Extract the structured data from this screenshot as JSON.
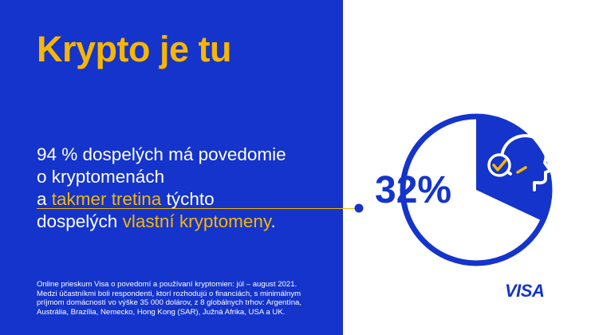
{
  "title": "Krypto je tu",
  "statement": {
    "line1": "94 % dospelých má povedomie",
    "line2": "o kryptomenách",
    "line3_pre": "a ",
    "line3_hl": "takmer tretina",
    "line3_post": " týchto",
    "line4_pre": "dospelých ",
    "line4_hl": "vlastní kryptomeny",
    "line4_post": "."
  },
  "stat": {
    "value_label": "32%",
    "fraction": 0.32
  },
  "footnote": {
    "line1": "Online prieskum Visa o povedomí a používaní kryptomien: júl – august 2021.",
    "line2": "Medzi účastníkmi boli respondenti, ktorí rozhodujú o financiách, s minimálnym",
    "line3": "príjmom domácností vo výške 35 000 dolárov, z 8 globálnych trhov: Argentína,",
    "line4": "Austrália, Brazília, Nemecko, Hong Kong (SAR), Južná Afrika, USA a UK."
  },
  "brand": "VISA",
  "colors": {
    "visa_blue": "#1434CB",
    "accent_yellow": "#F7B600",
    "white": "#FFFFFF"
  },
  "icons": {
    "person": "person-check-icon"
  }
}
